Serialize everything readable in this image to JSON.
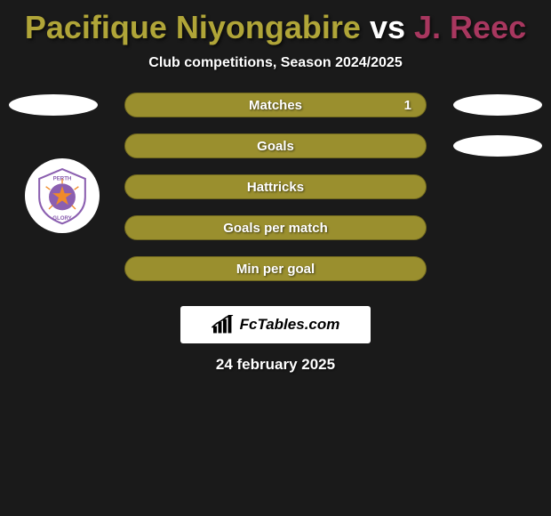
{
  "title": {
    "player1": "Pacifique Niyongabire",
    "vs": "vs",
    "player2": "J. Reec",
    "player1_color": "#b0a538",
    "vs_color": "#ffffff",
    "player2_color": "#a8375f"
  },
  "subtitle": "Club competitions, Season 2024/2025",
  "stats": {
    "bar_bg": "#9a8f2e",
    "bar_border": "#6f671f",
    "rows": [
      {
        "label": "Matches",
        "value_right": "1",
        "pill_left": true,
        "pill_right": true
      },
      {
        "label": "Goals",
        "value_right": "",
        "pill_left": false,
        "pill_right": true
      },
      {
        "label": "Hattricks",
        "value_right": "",
        "pill_left": false,
        "pill_right": false
      },
      {
        "label": "Goals per match",
        "value_right": "",
        "pill_left": false,
        "pill_right": false
      },
      {
        "label": "Min per goal",
        "value_right": "",
        "pill_left": false,
        "pill_right": false
      }
    ]
  },
  "badge": {
    "team_name": "PERTH GLORY",
    "crest_primary": "#8b5fb0",
    "crest_secondary": "#f08a2a",
    "crest_bg": "#ffffff"
  },
  "branding": {
    "text": "FcTables.com"
  },
  "date": "24 february 2025",
  "background_color": "#1a1a1a"
}
